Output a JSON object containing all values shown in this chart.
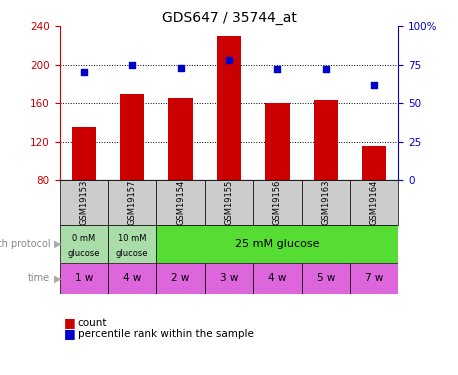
{
  "title": "GDS647 / 35744_at",
  "samples": [
    "GSM19153",
    "GSM19157",
    "GSM19154",
    "GSM19155",
    "GSM19156",
    "GSM19163",
    "GSM19164"
  ],
  "counts": [
    135,
    170,
    165,
    230,
    160,
    163,
    115
  ],
  "percentiles": [
    70,
    75,
    73,
    78,
    72,
    72,
    62
  ],
  "ylim_left": [
    80,
    240
  ],
  "ylim_right": [
    0,
    100
  ],
  "yticks_left": [
    80,
    120,
    160,
    200,
    240
  ],
  "yticks_right": [
    0,
    25,
    50,
    75,
    100
  ],
  "ytick_labels_right": [
    "0",
    "25",
    "50",
    "75",
    "100%"
  ],
  "bar_color": "#cc0000",
  "dot_color": "#0000cc",
  "bar_width": 0.5,
  "protocol_colors": [
    "#aaddaa",
    "#aaddaa",
    "#55dd33"
  ],
  "protocol_labels": [
    "0 mM\nglucose",
    "10 mM\nglucose",
    "25 mM glucose"
  ],
  "time_labels": [
    "1 w",
    "4 w",
    "2 w",
    "3 w",
    "4 w",
    "5 w",
    "7 w"
  ],
  "time_color": "#dd66dd",
  "sample_box_color": "#cccccc",
  "legend_count": "count",
  "legend_pct": "percentile rank within the sample",
  "growth_protocol_label": "growth protocol",
  "time_label": "time",
  "title_fontsize": 10,
  "tick_fontsize": 7.5,
  "label_fontsize": 7.5,
  "grid_lines": [
    120,
    160,
    200
  ]
}
